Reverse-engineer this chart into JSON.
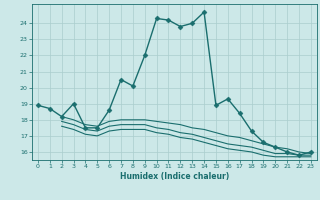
{
  "xlabel": "Humidex (Indice chaleur)",
  "bg_color": "#cce8e8",
  "grid_color": "#aacece",
  "line_color": "#1a6e6e",
  "xlim": [
    -0.5,
    23.5
  ],
  "ylim": [
    15.5,
    25.2
  ],
  "yticks": [
    16,
    17,
    18,
    19,
    20,
    21,
    22,
    23,
    24
  ],
  "xticks": [
    0,
    1,
    2,
    3,
    4,
    5,
    6,
    7,
    8,
    9,
    10,
    11,
    12,
    13,
    14,
    15,
    16,
    17,
    18,
    19,
    20,
    21,
    22,
    23
  ],
  "series": [
    {
      "x": [
        0,
        1,
        2,
        3,
        4,
        5,
        6,
        7,
        8,
        9,
        10,
        11,
        12,
        13,
        14,
        15,
        16,
        17,
        18,
        19,
        20,
        21,
        22,
        23
      ],
      "y": [
        18.9,
        18.7,
        18.2,
        19.0,
        17.5,
        17.5,
        18.6,
        20.5,
        20.1,
        22.0,
        24.3,
        24.2,
        23.8,
        24.0,
        24.7,
        18.9,
        19.3,
        18.4,
        17.3,
        16.6,
        16.3,
        16.0,
        15.8,
        16.0
      ],
      "marker": "D",
      "markersize": 2.5,
      "linewidth": 1.0
    },
    {
      "x": [
        2,
        3,
        4,
        5,
        6,
        7,
        8,
        9,
        10,
        11,
        12,
        13,
        14,
        15,
        16,
        17,
        18,
        19,
        20,
        21,
        22,
        23
      ],
      "y": [
        18.2,
        18.0,
        17.7,
        17.6,
        17.9,
        18.0,
        18.0,
        18.0,
        17.9,
        17.8,
        17.7,
        17.5,
        17.4,
        17.2,
        17.0,
        16.9,
        16.7,
        16.5,
        16.3,
        16.2,
        16.0,
        15.9
      ],
      "marker": null,
      "markersize": 0,
      "linewidth": 0.8
    },
    {
      "x": [
        2,
        3,
        4,
        5,
        6,
        7,
        8,
        9,
        10,
        11,
        12,
        13,
        14,
        15,
        16,
        17,
        18,
        19,
        20,
        21,
        22,
        23
      ],
      "y": [
        17.9,
        17.7,
        17.4,
        17.3,
        17.6,
        17.7,
        17.7,
        17.7,
        17.5,
        17.4,
        17.2,
        17.1,
        16.9,
        16.7,
        16.5,
        16.4,
        16.3,
        16.1,
        15.9,
        15.9,
        15.8,
        15.8
      ],
      "marker": null,
      "markersize": 0,
      "linewidth": 0.8
    },
    {
      "x": [
        2,
        3,
        4,
        5,
        6,
        7,
        8,
        9,
        10,
        11,
        12,
        13,
        14,
        15,
        16,
        17,
        18,
        19,
        20,
        21,
        22,
        23
      ],
      "y": [
        17.6,
        17.4,
        17.1,
        17.0,
        17.3,
        17.4,
        17.4,
        17.4,
        17.2,
        17.1,
        16.9,
        16.8,
        16.6,
        16.4,
        16.2,
        16.1,
        16.0,
        15.8,
        15.7,
        15.7,
        15.7,
        15.7
      ],
      "marker": null,
      "markersize": 0,
      "linewidth": 0.8
    }
  ]
}
